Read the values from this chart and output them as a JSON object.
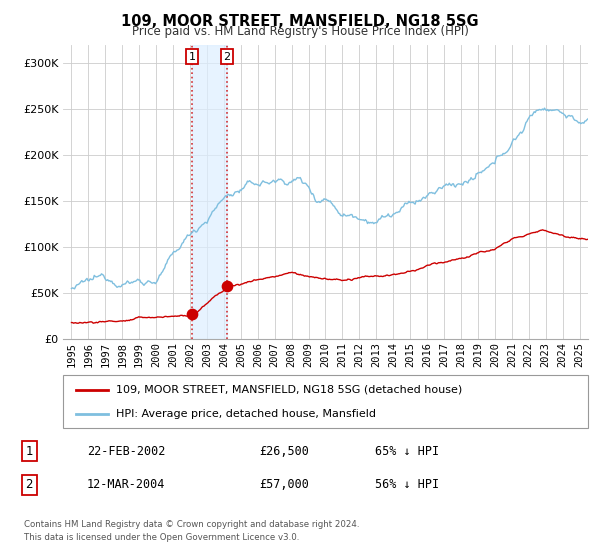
{
  "title": "109, MOOR STREET, MANSFIELD, NG18 5SG",
  "subtitle": "Price paid vs. HM Land Registry's House Price Index (HPI)",
  "xlim": [
    1994.5,
    2025.5
  ],
  "ylim": [
    0,
    320000
  ],
  "yticks": [
    0,
    50000,
    100000,
    150000,
    200000,
    250000,
    300000
  ],
  "ytick_labels": [
    "£0",
    "£50K",
    "£100K",
    "£150K",
    "£200K",
    "£250K",
    "£300K"
  ],
  "xtick_years": [
    1995,
    1996,
    1997,
    1998,
    1999,
    2000,
    2001,
    2002,
    2003,
    2004,
    2005,
    2006,
    2007,
    2008,
    2009,
    2010,
    2011,
    2012,
    2013,
    2014,
    2015,
    2016,
    2017,
    2018,
    2019,
    2020,
    2021,
    2022,
    2023,
    2024,
    2025
  ],
  "hpi_color": "#7fbfdf",
  "property_color": "#cc0000",
  "purchase1_date": 2002.13,
  "purchase1_price": 26500,
  "purchase1_label": "1",
  "purchase2_date": 2004.19,
  "purchase2_price": 57000,
  "purchase2_label": "2",
  "shade_color": "#ddeeff",
  "vline_color": "#cc0000",
  "grid_color": "#cccccc",
  "background_color": "#ffffff",
  "legend_label_property": "109, MOOR STREET, MANSFIELD, NG18 5SG (detached house)",
  "legend_label_hpi": "HPI: Average price, detached house, Mansfield",
  "table_row1": [
    "1",
    "22-FEB-2002",
    "£26,500",
    "65% ↓ HPI"
  ],
  "table_row2": [
    "2",
    "12-MAR-2004",
    "£57,000",
    "56% ↓ HPI"
  ],
  "footnote1": "Contains HM Land Registry data © Crown copyright and database right 2024.",
  "footnote2": "This data is licensed under the Open Government Licence v3.0."
}
